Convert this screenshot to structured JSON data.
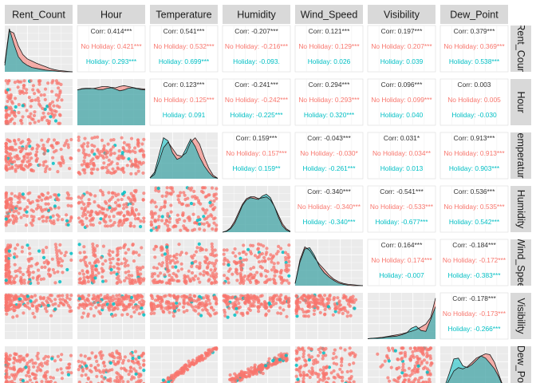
{
  "chart_data": {
    "type": "pairs",
    "variables": [
      "Rent_Count",
      "Hour",
      "Temperature",
      "Humidity",
      "Wind_Speed",
      "Visibility",
      "Dew_Point"
    ],
    "row_strip_labels": [
      "Rent_Coun",
      "Hour",
      "emperatur",
      "Humidity",
      "Wind_Spee",
      "Visibility",
      "Dew_Point"
    ],
    "groups": [
      {
        "name": "No Holiday",
        "color": "#F8766D"
      },
      {
        "name": "Holiday",
        "color": "#00BFC4"
      }
    ],
    "correlations": [
      {
        "row": 0,
        "col": 1,
        "overall": "Corr: 0.414***",
        "no_holiday": "No Holiday: 0.421***",
        "holiday": "Holiday: 0.293***"
      },
      {
        "row": 0,
        "col": 2,
        "overall": "Corr: 0.541***",
        "no_holiday": "No Holiday: 0.532***",
        "holiday": "Holiday: 0.699***"
      },
      {
        "row": 0,
        "col": 3,
        "overall": "Corr: -0.207***",
        "no_holiday": "No Holiday: -0.216***",
        "holiday": "Holiday: -0.093."
      },
      {
        "row": 0,
        "col": 4,
        "overall": "Corr: 0.121***",
        "no_holiday": "No Holiday: 0.129***",
        "holiday": "Holiday: 0.026"
      },
      {
        "row": 0,
        "col": 5,
        "overall": "Corr: 0.197***",
        "no_holiday": "No Holiday: 0.207***",
        "holiday": "Holiday: 0.039"
      },
      {
        "row": 0,
        "col": 6,
        "overall": "Corr: 0.379***",
        "no_holiday": "No Holiday: 0.369***",
        "holiday": "Holiday: 0.538***"
      },
      {
        "row": 1,
        "col": 2,
        "overall": "Corr: 0.123***",
        "no_holiday": "No Holiday: 0.125***",
        "holiday": "Holiday: 0.091"
      },
      {
        "row": 1,
        "col": 3,
        "overall": "Corr: -0.241***",
        "no_holiday": "No Holiday: -0.242***",
        "holiday": "Holiday: -0.225***"
      },
      {
        "row": 1,
        "col": 4,
        "overall": "Corr: 0.294***",
        "no_holiday": "No Holiday: 0.293***",
        "holiday": "Holiday: 0.320***"
      },
      {
        "row": 1,
        "col": 5,
        "overall": "Corr: 0.096***",
        "no_holiday": "No Holiday: 0.099***",
        "holiday": "Holiday: 0.040"
      },
      {
        "row": 1,
        "col": 6,
        "overall": "Corr: 0.003",
        "no_holiday": "No Holiday: 0.005",
        "holiday": "Holiday: -0.030"
      },
      {
        "row": 2,
        "col": 3,
        "overall": "Corr: 0.159***",
        "no_holiday": "No Holiday: 0.157***",
        "holiday": "Holiday: 0.159**"
      },
      {
        "row": 2,
        "col": 4,
        "overall": "Corr: -0.043***",
        "no_holiday": "No Holiday: -0.030*",
        "holiday": "Holiday: -0.261***"
      },
      {
        "row": 2,
        "col": 5,
        "overall": "Corr: 0.031*",
        "no_holiday": "No Holiday: 0.034**",
        "holiday": "Holiday: 0.013"
      },
      {
        "row": 2,
        "col": 6,
        "overall": "Corr: 0.913***",
        "no_holiday": "No Holiday: 0.913***",
        "holiday": "Holiday: 0.903***"
      },
      {
        "row": 3,
        "col": 4,
        "overall": "Corr: -0.340***",
        "no_holiday": "No Holiday: -0.340***",
        "holiday": "Holiday: -0.340***"
      },
      {
        "row": 3,
        "col": 5,
        "overall": "Corr: -0.541***",
        "no_holiday": "No Holiday: -0.533***",
        "holiday": "Holiday: -0.677***"
      },
      {
        "row": 3,
        "col": 6,
        "overall": "Corr: 0.536***",
        "no_holiday": "No Holiday: 0.535***",
        "holiday": "Holiday: 0.542***"
      },
      {
        "row": 4,
        "col": 5,
        "overall": "Corr: 0.164***",
        "no_holiday": "No Holiday: 0.174***",
        "holiday": "Holiday: -0.007"
      },
      {
        "row": 4,
        "col": 6,
        "overall": "Corr: -0.184***",
        "no_holiday": "No Holiday: -0.172***",
        "holiday": "Holiday: -0.383***"
      },
      {
        "row": 5,
        "col": 6,
        "overall": "Corr: -0.178***",
        "no_holiday": "No Holiday: -0.173***",
        "holiday": "Holiday: -0.266***"
      }
    ],
    "diagonal_density_shape": [
      {
        "variable": "Rent_Count",
        "no_holiday": [
          0.15,
          0.95,
          0.9,
          0.6,
          0.4,
          0.3,
          0.25,
          0.2,
          0.16,
          0.12,
          0.08,
          0.05,
          0.03,
          0.02,
          0.01,
          0.0
        ],
        "holiday": [
          0.2,
          1.0,
          0.65,
          0.35,
          0.22,
          0.15,
          0.1,
          0.08,
          0.06,
          0.04,
          0.03,
          0.02,
          0.01,
          0.0,
          0.0,
          0.0
        ]
      },
      {
        "variable": "Hour",
        "no_holiday": [
          0.82,
          0.84,
          0.85,
          0.85,
          0.86,
          0.88,
          0.9,
          0.9,
          0.88,
          0.87,
          0.9,
          0.92,
          0.9,
          0.88,
          0.86,
          0.85,
          0.84
        ],
        "holiday": [
          0.82,
          0.85,
          0.86,
          0.86,
          0.85,
          0.83,
          0.83,
          0.86,
          0.87,
          0.84,
          0.8,
          0.82,
          0.86,
          0.87,
          0.85,
          0.83,
          0.82
        ]
      },
      {
        "variable": "Temperature",
        "no_holiday": [
          0.02,
          0.1,
          0.4,
          0.72,
          0.85,
          0.7,
          0.55,
          0.52,
          0.6,
          0.85,
          0.95,
          0.8,
          0.5,
          0.25,
          0.08,
          0.01
        ],
        "holiday": [
          0.02,
          0.15,
          0.55,
          0.95,
          0.88,
          0.6,
          0.45,
          0.5,
          0.7,
          0.92,
          0.75,
          0.5,
          0.3,
          0.15,
          0.04,
          0.01
        ]
      },
      {
        "variable": "Humidity",
        "no_holiday": [
          0.0,
          0.03,
          0.1,
          0.25,
          0.45,
          0.65,
          0.78,
          0.82,
          0.82,
          0.78,
          0.8,
          0.82,
          0.75,
          0.6,
          0.4,
          0.2,
          0.08,
          0.02
        ],
        "holiday": [
          0.0,
          0.02,
          0.08,
          0.2,
          0.4,
          0.62,
          0.75,
          0.8,
          0.78,
          0.76,
          0.84,
          0.88,
          0.8,
          0.6,
          0.35,
          0.15,
          0.05,
          0.01
        ]
      },
      {
        "variable": "Wind_Speed",
        "no_holiday": [
          0.05,
          0.6,
          0.9,
          0.82,
          0.65,
          0.5,
          0.38,
          0.25,
          0.15,
          0.09,
          0.05,
          0.03,
          0.02,
          0.01,
          0.0
        ],
        "holiday": [
          0.05,
          0.55,
          0.85,
          0.88,
          0.7,
          0.45,
          0.3,
          0.2,
          0.12,
          0.06,
          0.03,
          0.01,
          0.0,
          0.0,
          0.0
        ]
      },
      {
        "variable": "Visibility",
        "no_holiday": [
          0.01,
          0.02,
          0.03,
          0.04,
          0.06,
          0.08,
          0.1,
          0.12,
          0.15,
          0.18,
          0.22,
          0.28,
          0.35,
          0.5,
          0.95
        ],
        "holiday": [
          0.01,
          0.02,
          0.02,
          0.03,
          0.05,
          0.06,
          0.07,
          0.1,
          0.14,
          0.25,
          0.3,
          0.2,
          0.18,
          0.45,
          0.75
        ]
      },
      {
        "variable": "Dew_Point",
        "no_holiday": [
          0.02,
          0.1,
          0.3,
          0.5,
          0.58,
          0.55,
          0.6,
          0.7,
          0.8,
          0.85,
          0.9,
          0.88,
          0.7,
          0.4,
          0.12,
          0.02
        ],
        "holiday": [
          0.02,
          0.15,
          0.45,
          0.78,
          0.8,
          0.62,
          0.58,
          0.65,
          0.75,
          0.85,
          0.8,
          0.68,
          0.55,
          0.35,
          0.1,
          0.01
        ]
      }
    ]
  }
}
